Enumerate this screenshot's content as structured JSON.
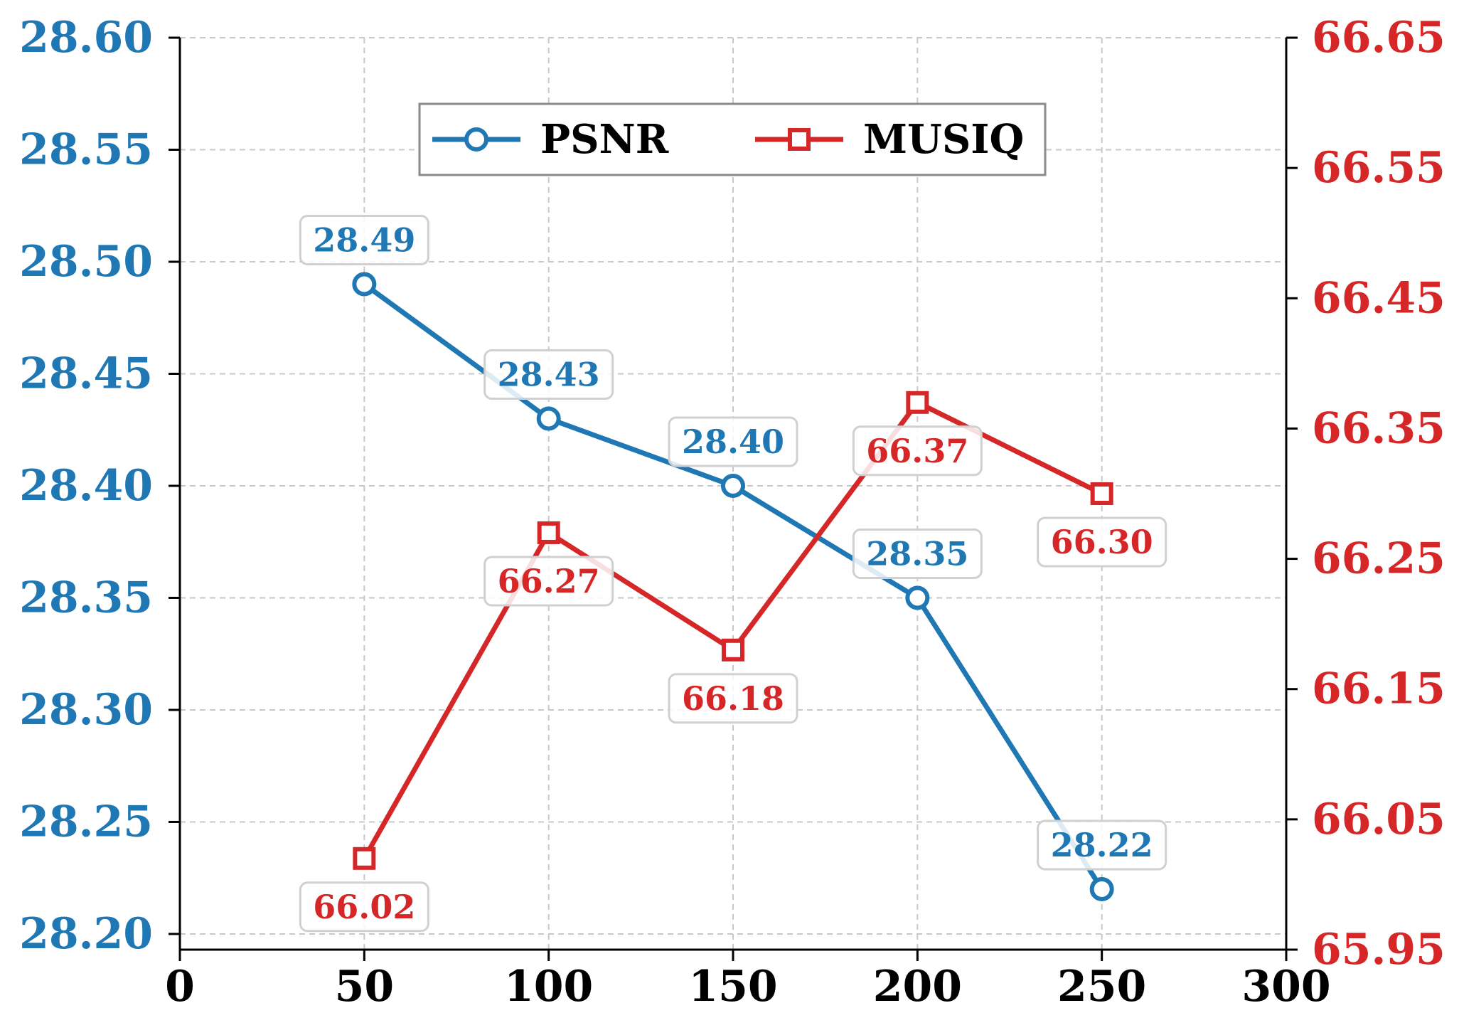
{
  "chart_data": {
    "type": "line",
    "title": "",
    "xlabel": "",
    "ylabel": "",
    "y2label": "",
    "x": [
      50,
      100,
      150,
      200,
      250
    ],
    "xlim": [
      0,
      300
    ],
    "ylim": [
      28.193,
      28.6
    ],
    "y2lim": [
      65.95,
      66.65
    ],
    "x_ticks": [
      "0",
      "50",
      "100",
      "150",
      "200",
      "250",
      "300"
    ],
    "x_tick_values": [
      0,
      50,
      100,
      150,
      200,
      250,
      300
    ],
    "y_ticks": [
      "28.20",
      "28.25",
      "28.30",
      "28.35",
      "28.40",
      "28.45",
      "28.50",
      "28.55",
      "28.60"
    ],
    "y_tick_values": [
      28.2,
      28.25,
      28.3,
      28.35,
      28.4,
      28.45,
      28.5,
      28.55,
      28.6
    ],
    "y2_ticks": [
      "65.95",
      "66.05",
      "66.15",
      "66.25",
      "66.35",
      "66.45",
      "66.55",
      "66.65"
    ],
    "y2_tick_values": [
      65.95,
      66.05,
      66.15,
      66.25,
      66.35,
      66.45,
      66.55,
      66.65
    ],
    "grid": true,
    "legend_position": "top-center",
    "series": [
      {
        "name": "PSNR",
        "axis": "left",
        "color": "#1f77b4",
        "marker": "circle",
        "values": [
          28.49,
          28.43,
          28.4,
          28.35,
          28.22
        ],
        "labels": [
          "28.49",
          "28.43",
          "28.40",
          "28.35",
          "28.22"
        ],
        "label_placement": "above"
      },
      {
        "name": "MUSIQ",
        "axis": "right",
        "color": "#d62728",
        "marker": "square",
        "values": [
          66.02,
          66.27,
          66.18,
          66.37,
          66.3
        ],
        "labels": [
          "66.02",
          "66.27",
          "66.18",
          "66.37",
          "66.30"
        ],
        "label_placement": "below"
      }
    ]
  }
}
